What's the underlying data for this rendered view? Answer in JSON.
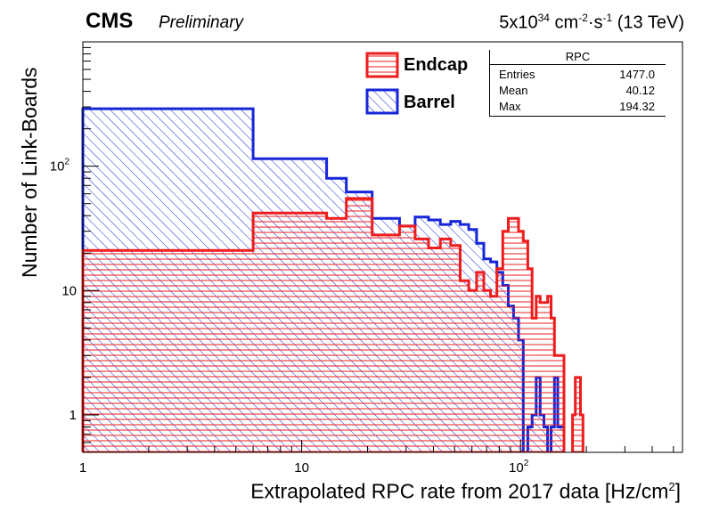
{
  "header": {
    "cms": "CMS",
    "preliminary": "Preliminary",
    "lumi_base": "5x10",
    "lumi_exp": "34",
    "lumi_unit1": " cm",
    "lumi_unit1_exp": "-2",
    "lumi_unit2": "·s",
    "lumi_unit2_exp": "-1",
    "lumi_energy": " (13 TeV)"
  },
  "axes": {
    "x_title_main": "Extrapolated RPC rate from 2017 data [Hz/cm",
    "x_title_exp": "2",
    "x_title_end": "]",
    "y_title": "Number of Link-Boards"
  },
  "legend": {
    "endcap": "Endcap",
    "barrel": "Barrel"
  },
  "stats": {
    "title": "RPC",
    "rows": [
      {
        "key": "Entries",
        "value": "1477.0"
      },
      {
        "key": "Mean",
        "value": "40.12"
      },
      {
        "key": "Max",
        "value": "194.32"
      }
    ]
  },
  "colors": {
    "endcap": "#ee1c1c",
    "barrel": "#1626d8"
  },
  "chart_data": {
    "type": "histogram",
    "x_scale": "log",
    "y_scale": "log",
    "xlim": [
      1,
      550
    ],
    "ylim": [
      0.5,
      1000
    ],
    "x_tick_labels": [
      {
        "value": 1,
        "label": "1"
      },
      {
        "value": 10,
        "label": "10"
      },
      {
        "value": 100,
        "label": "10",
        "exp": "2"
      }
    ],
    "y_tick_labels": [
      {
        "value": 1,
        "label": "1"
      },
      {
        "value": 10,
        "label": "10"
      },
      {
        "value": 100,
        "label": "10",
        "exp": "2"
      }
    ],
    "series": [
      {
        "name": "Barrel",
        "edges": [
          1,
          6,
          13,
          16,
          21,
          28,
          33,
          38,
          43,
          48,
          53,
          58,
          63,
          68,
          73,
          78,
          83,
          88,
          93,
          98,
          103,
          108,
          113,
          118,
          123,
          128,
          133,
          138,
          143,
          148,
          153,
          158,
          163,
          168,
          173,
          178,
          183,
          188,
          193,
          198
        ],
        "values": [
          290,
          115,
          80,
          62,
          38,
          33,
          39,
          37,
          34,
          36,
          34,
          31,
          24,
          18,
          17,
          14,
          11,
          7.5,
          6.0,
          4.0,
          0,
          0.8,
          1.0,
          2.0,
          1.0,
          0.8,
          0,
          0.8,
          2.0,
          0.8,
          0.8,
          0,
          0,
          0,
          0,
          0,
          0,
          0,
          0
        ]
      },
      {
        "name": "Endcap",
        "edges": [
          1,
          6,
          13,
          16,
          21,
          28,
          33,
          38,
          43,
          48,
          53,
          58,
          63,
          68,
          73,
          78,
          83,
          88,
          93,
          98,
          103,
          108,
          113,
          118,
          123,
          128,
          133,
          138,
          143,
          148,
          153,
          158,
          163,
          168,
          173,
          178,
          183,
          188,
          193,
          198
        ],
        "values": [
          21,
          42,
          38,
          55,
          28,
          33,
          26,
          22,
          26,
          23,
          12,
          10,
          14,
          10,
          9,
          15,
          30,
          38,
          38,
          30,
          25,
          15,
          6,
          9,
          8,
          8,
          9,
          6,
          3,
          3,
          3,
          0,
          0,
          0,
          1.0,
          2.0,
          2.0,
          1.0,
          0
        ]
      }
    ]
  }
}
